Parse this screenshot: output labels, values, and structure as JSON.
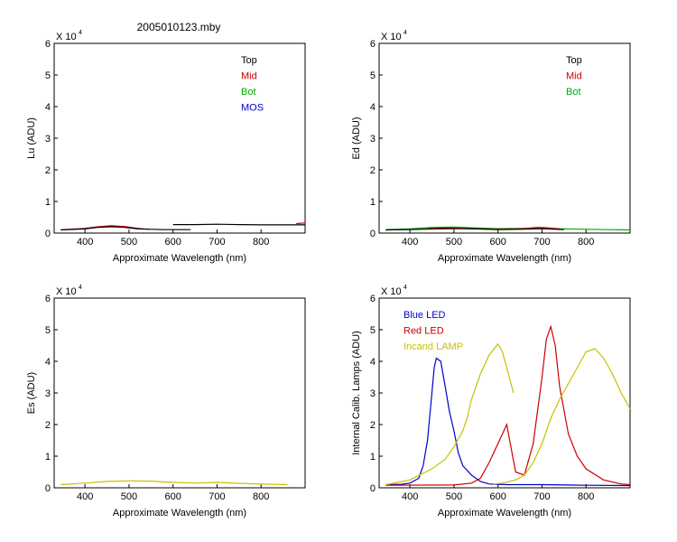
{
  "figure": {
    "title": "2005010123.mby"
  },
  "chart_data": [
    {
      "id": "lu",
      "type": "line",
      "multiplier_label": "X 10",
      "multiplier_exp": "4",
      "xlabel": "Approximate Wavelength (nm)",
      "ylabel": "Lu (ADU)",
      "xlim": [
        330,
        900
      ],
      "ylim": [
        0,
        60000
      ],
      "xticks": [
        400,
        500,
        600,
        700,
        800
      ],
      "yticks": [
        0,
        1,
        2,
        3,
        4,
        5,
        6
      ],
      "legend": [
        "Top",
        "Mid",
        "Bot",
        "MOS"
      ],
      "legend_colors": [
        "#000000",
        "#cc0000",
        "#00aa00",
        "#0000cc"
      ],
      "series": [
        {
          "name": "Mid",
          "color": "#cc0000",
          "x": [
            345,
            400,
            430,
            460,
            490,
            520,
            545
          ],
          "y": [
            1000,
            1500,
            2000,
            2300,
            2100,
            1500,
            1200
          ]
        },
        {
          "name": "Top",
          "color": "#000000",
          "x": [
            345,
            400,
            430,
            460,
            490,
            520,
            550,
            580,
            600,
            640
          ],
          "y": [
            1000,
            1300,
            1800,
            2000,
            1800,
            1300,
            1200,
            1100,
            1100,
            1100
          ]
        },
        {
          "name": "Top",
          "color": "#000000",
          "x": [
            600,
            650,
            700,
            750,
            800,
            850,
            900
          ],
          "y": [
            2700,
            2700,
            2800,
            2700,
            2600,
            2600,
            2600
          ]
        },
        {
          "name": "Mid",
          "color": "#cc0000",
          "x": [
            880,
            900
          ],
          "y": [
            3000,
            3200
          ]
        }
      ]
    },
    {
      "id": "ed",
      "type": "line",
      "multiplier_label": "X 10",
      "multiplier_exp": "4",
      "xlabel": "Approximate Wavelength (nm)",
      "ylabel": "Ed  (ADU)",
      "xlim": [
        330,
        900
      ],
      "ylim": [
        0,
        60000
      ],
      "xticks": [
        400,
        500,
        600,
        700,
        800
      ],
      "yticks": [
        0,
        1,
        2,
        3,
        4,
        5,
        6
      ],
      "legend": [
        "Top",
        "Mid",
        "Bot"
      ],
      "legend_colors": [
        "#000000",
        "#cc0000",
        "#00aa00"
      ],
      "series": [
        {
          "name": "Bot",
          "color": "#00aa00",
          "x": [
            345,
            400,
            450,
            500,
            550,
            600,
            650,
            700,
            750,
            800,
            850,
            900
          ],
          "y": [
            1100,
            1300,
            1800,
            1900,
            1600,
            1400,
            1500,
            1500,
            1300,
            1200,
            1100,
            1000
          ]
        },
        {
          "name": "Mid",
          "color": "#cc0000",
          "x": [
            440,
            480,
            520,
            560,
            600,
            650,
            690,
            710,
            740
          ],
          "y": [
            1400,
            1600,
            1500,
            1300,
            1200,
            1300,
            1800,
            1700,
            1300
          ]
        },
        {
          "name": "Top",
          "color": "#000000",
          "x": [
            345,
            400,
            450,
            500,
            550,
            600,
            650,
            700,
            750
          ],
          "y": [
            1000,
            1100,
            1300,
            1400,
            1300,
            1100,
            1200,
            1400,
            1100
          ]
        }
      ]
    },
    {
      "id": "es",
      "type": "line",
      "multiplier_label": "X 10",
      "multiplier_exp": "4",
      "xlabel": "Approximate Wavelength (nm)",
      "ylabel": "Es  (ADU)",
      "xlim": [
        330,
        900
      ],
      "ylim": [
        0,
        60000
      ],
      "xticks": [
        400,
        500,
        600,
        700,
        800
      ],
      "yticks": [
        0,
        1,
        2,
        3,
        4,
        5,
        6
      ],
      "legend": [],
      "legend_colors": [],
      "series": [
        {
          "name": "",
          "color": "#c8c000",
          "x": [
            345,
            400,
            450,
            500,
            550,
            600,
            650,
            700,
            750,
            800,
            860
          ],
          "y": [
            1000,
            1500,
            2000,
            2200,
            2100,
            1700,
            1500,
            1700,
            1400,
            1200,
            1000
          ]
        }
      ]
    },
    {
      "id": "calib",
      "type": "line",
      "multiplier_label": "X 10",
      "multiplier_exp": "4",
      "xlabel": "Approximate Wavelength (nm)",
      "ylabel": "Internal Calib. Lamps (ADU)",
      "xlim": [
        330,
        900
      ],
      "ylim": [
        0,
        60000
      ],
      "xticks": [
        400,
        500,
        600,
        700,
        800
      ],
      "yticks": [
        0,
        1,
        2,
        3,
        4,
        5,
        6
      ],
      "legend": [
        "Blue LED",
        "Red LED",
        "Incand LAMP"
      ],
      "legend_colors": [
        "#0000cc",
        "#cc0000",
        "#c8c000"
      ],
      "series": [
        {
          "name": "Blue LED",
          "color": "#0000cc",
          "x": [
            345,
            380,
            400,
            420,
            430,
            440,
            450,
            455,
            460,
            470,
            480,
            490,
            500,
            510,
            520,
            540,
            560,
            580,
            620,
            700,
            800,
            900
          ],
          "y": [
            1000,
            1100,
            1500,
            3000,
            7000,
            15000,
            30000,
            38000,
            41000,
            40000,
            32000,
            24000,
            18000,
            11000,
            7000,
            4000,
            2000,
            1200,
            1000,
            1000,
            800,
            700
          ]
        },
        {
          "name": "Red LED",
          "color": "#cc0000",
          "x": [
            345,
            500,
            540,
            560,
            580,
            600,
            620,
            640,
            660,
            680,
            700,
            710,
            720,
            730,
            740,
            760,
            780,
            800,
            840,
            880,
            900
          ],
          "y": [
            800,
            900,
            1500,
            3000,
            8000,
            14000,
            20000,
            5000,
            4000,
            14000,
            35000,
            47000,
            51000,
            45000,
            32000,
            17000,
            10000,
            6000,
            2500,
            1200,
            1000
          ]
        },
        {
          "name": "Incand LAMP",
          "color": "#c8c000",
          "x": [
            345,
            400,
            450,
            480,
            500,
            520,
            530,
            540,
            560,
            580,
            600,
            610,
            620,
            635
          ],
          "y": [
            1000,
            2500,
            6000,
            9000,
            13000,
            18000,
            22000,
            28000,
            36000,
            42000,
            45500,
            43000,
            38000,
            30000
          ]
        },
        {
          "name": "Incand LAMP",
          "color": "#c8c000",
          "x": [
            590,
            610,
            640,
            660,
            680,
            700,
            720,
            740,
            760,
            780,
            800,
            820,
            840,
            860,
            880,
            900
          ],
          "y": [
            1200,
            1500,
            2500,
            4000,
            8000,
            14000,
            22000,
            28000,
            33000,
            38000,
            43000,
            44000,
            41000,
            36000,
            30000,
            25000
          ]
        }
      ]
    }
  ]
}
